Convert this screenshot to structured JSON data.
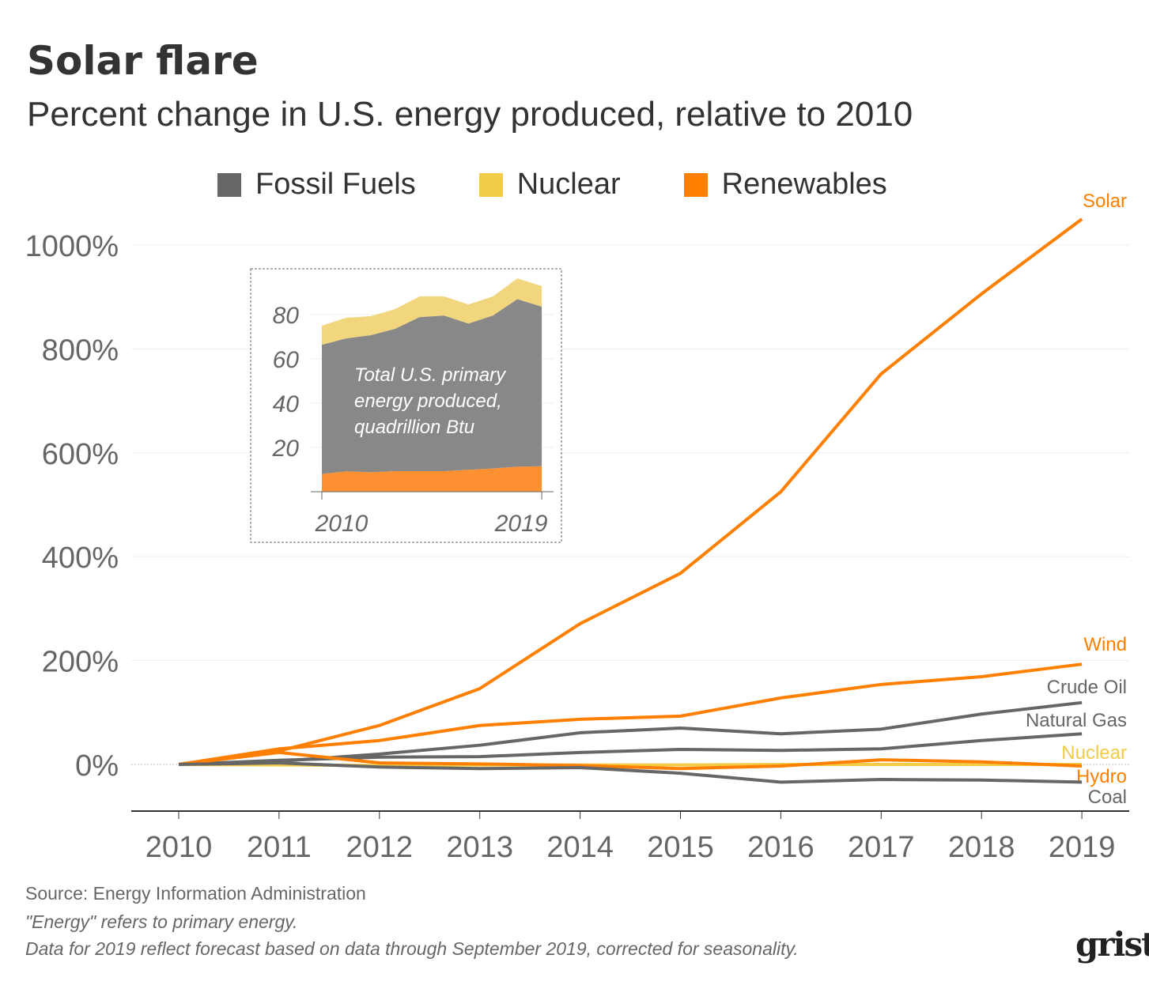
{
  "title": "Solar flare",
  "subtitle": "Percent change in U.S. energy produced, relative to 2010",
  "legend": [
    {
      "label": "Fossil Fuels",
      "color": "#666666"
    },
    {
      "label": "Nuclear",
      "color": "#f2cc48"
    },
    {
      "label": "Renewables",
      "color": "#ff7f00"
    }
  ],
  "footer": {
    "source": "Source: Energy Information Administration",
    "note1": "\"Energy\" refers to primary energy.",
    "note2": "Data for 2019 reflect forecast based on data through September 2019, corrected for seasonality."
  },
  "logo": "grist",
  "chart_data": [
    {
      "type": "line",
      "title": "Solar flare",
      "subtitle": "Percent change in U.S. energy produced, relative to 2010",
      "x": [
        2010,
        2011,
        2012,
        2013,
        2014,
        2015,
        2016,
        2017,
        2018,
        2019
      ],
      "ylim": [
        -90,
        1100
      ],
      "yticks": [
        0,
        200,
        400,
        600,
        800,
        1000
      ],
      "ytick_labels": [
        "0%",
        "200%",
        "400%",
        "600%",
        "800%",
        "1000%"
      ],
      "grid": true,
      "series": [
        {
          "name": "Solar",
          "group": "Renewables",
          "color": "#ff7f00",
          "values": [
            0,
            26,
            75,
            146,
            271,
            368,
            525,
            752,
            906,
            1050
          ]
        },
        {
          "name": "Wind",
          "group": "Renewables",
          "color": "#ff7f00",
          "values": [
            0,
            30,
            46,
            75,
            87,
            93,
            128,
            154,
            169,
            193
          ]
        },
        {
          "name": "Crude Oil",
          "group": "Fossil Fuels",
          "color": "#666666",
          "values": [
            0,
            6,
            20,
            37,
            61,
            70,
            59,
            68,
            97,
            119
          ]
        },
        {
          "name": "Natural Gas",
          "group": "Fossil Fuels",
          "color": "#666666",
          "values": [
            0,
            8,
            14,
            15,
            23,
            29,
            27,
            30,
            46,
            59
          ]
        },
        {
          "name": "Nuclear",
          "group": "Nuclear",
          "color": "#f2cc48",
          "values": [
            0,
            -1,
            -2,
            -1,
            -1,
            -1,
            0,
            0,
            0,
            0
          ]
        },
        {
          "name": "Hydro",
          "group": "Renewables",
          "color": "#ff7f00",
          "values": [
            0,
            23,
            3,
            1,
            -2,
            -8,
            -3,
            9,
            5,
            -3
          ]
        },
        {
          "name": "Coal",
          "group": "Fossil Fuels",
          "color": "#666666",
          "values": [
            0,
            3,
            -5,
            -8,
            -6,
            -17,
            -34,
            -29,
            -30,
            -34
          ]
        }
      ]
    },
    {
      "type": "area",
      "stacked": true,
      "annotation": "Total U.S. primary energy produced, quadrillion Btu",
      "x": [
        2010,
        2011,
        2012,
        2013,
        2014,
        2015,
        2016,
        2017,
        2018,
        2019
      ],
      "xtick_labels": [
        "2010",
        "2019"
      ],
      "yticks": [
        20,
        40,
        60,
        80
      ],
      "ylim": [
        0,
        100
      ],
      "series": [
        {
          "group": "Renewables",
          "color": "#fd9131",
          "values": [
            8,
            9.2,
            8.8,
            9.3,
            9.3,
            9.3,
            9.9,
            10.5,
            11.3,
            11.5
          ]
        },
        {
          "group": "Fossil Fuels",
          "color": "#888888",
          "values": [
            58.4,
            60.1,
            61.9,
            64.3,
            69.6,
            70.3,
            66.1,
            69.1,
            75.7,
            72.1
          ]
        },
        {
          "group": "Nuclear",
          "color": "#f2d67e",
          "values": [
            8.6,
            9.3,
            8.6,
            8.9,
            9.3,
            8.6,
            8.6,
            8.6,
            9.4,
            9.3
          ]
        }
      ]
    }
  ]
}
